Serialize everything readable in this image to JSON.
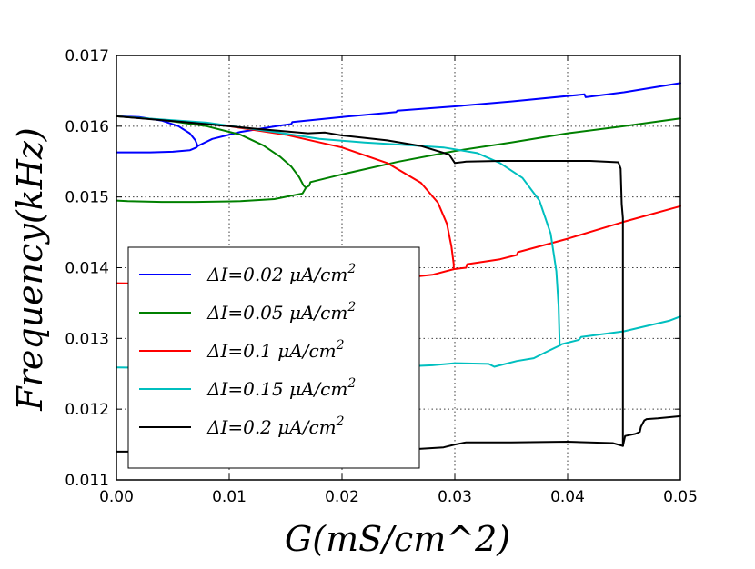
{
  "chart_data": {
    "type": "line",
    "title": "",
    "xlabel": "G(mS/cm^2)",
    "ylabel": "Frequency(kHz)",
    "xlim": [
      0.0,
      0.05
    ],
    "ylim": [
      0.011,
      0.017
    ],
    "grid": true,
    "legend_position": "lower-left",
    "x_ticks": [
      "0.00",
      "0.01",
      "0.02",
      "0.03",
      "0.04",
      "0.05"
    ],
    "y_ticks": [
      "0.011",
      "0.012",
      "0.013",
      "0.014",
      "0.015",
      "0.016",
      "0.017"
    ],
    "series": [
      {
        "name": "ΔI=0.02 μA/cm2",
        "label_prefix": "ΔI=0.02 μA/cm",
        "label_exponent": "2",
        "color": "#0000ff",
        "branches": [
          [
            [
              0.0,
              0.01614
            ],
            [
              0.002,
              0.01613
            ],
            [
              0.004,
              0.01608
            ],
            [
              0.0055,
              0.016
            ],
            [
              0.0065,
              0.0159
            ],
            [
              0.007,
              0.0158
            ],
            [
              0.0072,
              0.01572
            ]
          ],
          [
            [
              0.0072,
              0.01572
            ],
            [
              0.0071,
              0.0157
            ],
            [
              0.0065,
              0.01566
            ],
            [
              0.005,
              0.01564
            ],
            [
              0.003,
              0.01563
            ],
            [
              0.001,
              0.01563
            ],
            [
              0.0,
              0.01563
            ]
          ],
          [
            [
              0.0072,
              0.01572
            ],
            [
              0.0085,
              0.01582
            ],
            [
              0.011,
              0.01592
            ],
            [
              0.0145,
              0.01601
            ],
            [
              0.0155,
              0.01603
            ],
            [
              0.0156,
              0.01606
            ],
            [
              0.02,
              0.01613
            ],
            [
              0.0248,
              0.0162
            ],
            [
              0.0249,
              0.01622
            ],
            [
              0.03,
              0.01628
            ],
            [
              0.035,
              0.01635
            ],
            [
              0.0415,
              0.01645
            ],
            [
              0.0416,
              0.01641
            ],
            [
              0.045,
              0.01648
            ],
            [
              0.05,
              0.01661
            ]
          ]
        ]
      },
      {
        "name": "ΔI=0.05 μA/cm2",
        "label_prefix": "ΔI=0.05 μA/cm",
        "label_exponent": "2",
        "color": "#008000",
        "branches": [
          [
            [
              0.0,
              0.01614
            ],
            [
              0.004,
              0.01609
            ],
            [
              0.008,
              0.016
            ],
            [
              0.011,
              0.01588
            ],
            [
              0.013,
              0.01573
            ],
            [
              0.0145,
              0.01557
            ],
            [
              0.0155,
              0.01543
            ],
            [
              0.0162,
              0.01528
            ],
            [
              0.0166,
              0.01516
            ],
            [
              0.0168,
              0.01513
            ]
          ],
          [
            [
              0.0168,
              0.01513
            ],
            [
              0.0165,
              0.01505
            ],
            [
              0.014,
              0.01497
            ],
            [
              0.011,
              0.01494
            ],
            [
              0.007,
              0.01493
            ],
            [
              0.004,
              0.01493
            ],
            [
              0.001,
              0.01494
            ],
            [
              0.0,
              0.01495
            ]
          ],
          [
            [
              0.0168,
              0.01513
            ],
            [
              0.0171,
              0.01516
            ],
            [
              0.0172,
              0.01521
            ],
            [
              0.02,
              0.01532
            ],
            [
              0.025,
              0.0155
            ],
            [
              0.03,
              0.01565
            ],
            [
              0.035,
              0.01577
            ],
            [
              0.04,
              0.0159
            ],
            [
              0.045,
              0.016
            ],
            [
              0.05,
              0.01611
            ]
          ]
        ]
      },
      {
        "name": "ΔI=0.1 μA/cm2",
        "label_prefix": "ΔI=0.1 μA/cm",
        "label_exponent": "2",
        "color": "#ff0000",
        "branches": [
          [
            [
              0.0,
              0.01614
            ],
            [
              0.005,
              0.01608
            ],
            [
              0.01,
              0.016
            ],
            [
              0.015,
              0.01588
            ],
            [
              0.02,
              0.0157
            ],
            [
              0.024,
              0.01548
            ],
            [
              0.027,
              0.0152
            ],
            [
              0.0285,
              0.01492
            ],
            [
              0.0293,
              0.01462
            ],
            [
              0.0297,
              0.0143
            ],
            [
              0.0299,
              0.01405
            ],
            [
              0.0299,
              0.01398
            ]
          ],
          [
            [
              0.0299,
              0.01398
            ],
            [
              0.028,
              0.0139
            ],
            [
              0.025,
              0.01385
            ],
            [
              0.02,
              0.01381
            ],
            [
              0.015,
              0.01379
            ],
            [
              0.01,
              0.01378
            ],
            [
              0.005,
              0.01377
            ],
            [
              0.0,
              0.01378
            ]
          ],
          [
            [
              0.0299,
              0.01398
            ],
            [
              0.031,
              0.014
            ],
            [
              0.0311,
              0.01405
            ],
            [
              0.034,
              0.01412
            ],
            [
              0.0355,
              0.01418
            ],
            [
              0.0356,
              0.01422
            ],
            [
              0.04,
              0.01441
            ],
            [
              0.045,
              0.01465
            ],
            [
              0.05,
              0.01487
            ]
          ]
        ]
      },
      {
        "name": "ΔI=0.15 μA/cm2",
        "label_prefix": "ΔI=0.15 μA/cm",
        "label_exponent": "2",
        "color": "#00bfbf",
        "branches": [
          [
            [
              0.0,
              0.01614
            ],
            [
              0.008,
              0.01605
            ],
            [
              0.014,
              0.01592
            ],
            [
              0.018,
              0.01582
            ],
            [
              0.022,
              0.01577
            ],
            [
              0.026,
              0.01573
            ],
            [
              0.029,
              0.0157
            ],
            [
              0.032,
              0.01562
            ],
            [
              0.034,
              0.01548
            ],
            [
              0.036,
              0.01527
            ],
            [
              0.0375,
              0.01495
            ],
            [
              0.0385,
              0.01448
            ],
            [
              0.039,
              0.01395
            ],
            [
              0.0392,
              0.01345
            ],
            [
              0.0393,
              0.0129
            ]
          ],
          [
            [
              0.0393,
              0.0129
            ],
            [
              0.038,
              0.0128
            ],
            [
              0.037,
              0.01272
            ],
            [
              0.0355,
              0.01268
            ],
            [
              0.034,
              0.01262
            ],
            [
              0.0335,
              0.0126
            ],
            [
              0.033,
              0.01264
            ],
            [
              0.03,
              0.01265
            ],
            [
              0.028,
              0.01262
            ],
            [
              0.025,
              0.0126
            ],
            [
              0.02,
              0.01259
            ],
            [
              0.015,
              0.01258
            ],
            [
              0.01,
              0.01258
            ],
            [
              0.005,
              0.01258
            ],
            [
              0.0,
              0.01259
            ]
          ],
          [
            [
              0.0393,
              0.0129
            ],
            [
              0.0395,
              0.01292
            ],
            [
              0.041,
              0.01298
            ],
            [
              0.0412,
              0.01302
            ],
            [
              0.045,
              0.0131
            ],
            [
              0.049,
              0.01325
            ],
            [
              0.05,
              0.01331
            ]
          ]
        ]
      },
      {
        "name": "ΔI=0.2 μA/cm2",
        "label_prefix": "ΔI=0.2 μA/cm",
        "label_exponent": "2",
        "color": "#000000",
        "branches": [
          [
            [
              0.0,
              0.01614
            ],
            [
              0.006,
              0.01606
            ],
            [
              0.012,
              0.01597
            ],
            [
              0.017,
              0.0159
            ],
            [
              0.0185,
              0.01591
            ],
            [
              0.02,
              0.01587
            ],
            [
              0.024,
              0.0158
            ],
            [
              0.027,
              0.01572
            ],
            [
              0.0295,
              0.0156
            ],
            [
              0.03,
              0.01548
            ]
          ],
          [
            [
              0.03,
              0.01548
            ],
            [
              0.031,
              0.0155
            ],
            [
              0.034,
              0.01551
            ],
            [
              0.038,
              0.01551
            ],
            [
              0.042,
              0.01551
            ],
            [
              0.0445,
              0.01549
            ],
            [
              0.0447,
              0.0154
            ],
            [
              0.0448,
              0.0149
            ],
            [
              0.0449,
              0.0147
            ],
            [
              0.0449,
              0.01318
            ],
            [
              0.0449,
              0.0116
            ],
            [
              0.0449,
              0.01148
            ]
          ],
          [
            [
              0.0449,
              0.01148
            ],
            [
              0.044,
              0.01152
            ],
            [
              0.04,
              0.01154
            ],
            [
              0.035,
              0.01153
            ],
            [
              0.031,
              0.01153
            ],
            [
              0.03,
              0.0115
            ],
            [
              0.029,
              0.01146
            ],
            [
              0.025,
              0.01142
            ],
            [
              0.02,
              0.01141
            ],
            [
              0.015,
              0.0114
            ],
            [
              0.01,
              0.0114
            ],
            [
              0.005,
              0.0114
            ],
            [
              0.0,
              0.0114
            ]
          ],
          [
            [
              0.0449,
              0.01148
            ],
            [
              0.0451,
              0.01162
            ],
            [
              0.046,
              0.01165
            ],
            [
              0.0464,
              0.01168
            ],
            [
              0.0465,
              0.01175
            ],
            [
              0.0468,
              0.01184
            ],
            [
              0.047,
              0.01186
            ],
            [
              0.048,
              0.01187
            ],
            [
              0.05,
              0.0119
            ]
          ]
        ]
      }
    ]
  }
}
